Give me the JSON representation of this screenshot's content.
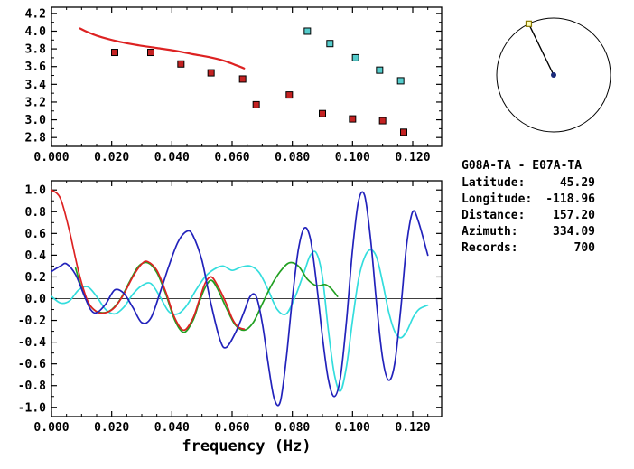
{
  "station_info": {
    "title": "G08A-TA - E07A-TA",
    "rows": [
      {
        "label": "Latitude:",
        "value": "45.29"
      },
      {
        "label": "Longitude:",
        "value": "-118.96"
      },
      {
        "label": "Distance:",
        "value": "157.20"
      },
      {
        "label": "Azimuth:",
        "value": "334.09"
      },
      {
        "label": "Records:",
        "value": "700"
      }
    ]
  },
  "azimuth_dial": {
    "azimuth_deg": 334.09,
    "center_dot_color": "#1a2a7a",
    "marker_outline_color": "#887700",
    "marker_fill_color": "#ffffbb"
  },
  "chart_data": [
    {
      "name": "dispersion-curves",
      "type": "scatter",
      "title": "",
      "xlabel": "",
      "ylabel": "",
      "xlim": [
        0,
        0.1296
      ],
      "ylim": [
        2.7,
        4.27
      ],
      "xticks": [
        0,
        0.02,
        0.04,
        0.06,
        0.08,
        0.1,
        0.12
      ],
      "xtick_labels": [
        "0.000",
        "0.020",
        "0.040",
        "0.060",
        "0.080",
        "0.100",
        "0.120"
      ],
      "xminor": 0.005,
      "yticks": [
        2.8,
        3.0,
        3.2,
        3.4,
        3.6,
        3.8,
        4.0,
        4.2
      ],
      "ytick_labels": [
        "2.8",
        "3.0",
        "3.2",
        "3.4",
        "3.6",
        "3.8",
        "4.0",
        "4.2"
      ],
      "yminor": 0.1,
      "zero_line": false,
      "series": [
        {
          "name": "red-dispersion-curve",
          "style": "line",
          "color": "#dd2222",
          "width": 2.2,
          "points": [
            [
              0.0095,
              4.03
            ],
            [
              0.012,
              3.99
            ],
            [
              0.015,
              3.95
            ],
            [
              0.019,
              3.91
            ],
            [
              0.024,
              3.87
            ],
            [
              0.029,
              3.84
            ],
            [
              0.035,
              3.81
            ],
            [
              0.041,
              3.78
            ],
            [
              0.047,
              3.74
            ],
            [
              0.052,
              3.71
            ],
            [
              0.057,
              3.67
            ],
            [
              0.061,
              3.62
            ],
            [
              0.064,
              3.58
            ]
          ]
        },
        {
          "name": "red-square-picks",
          "style": "squares",
          "color": "#c42222",
          "points": [
            [
              0.021,
              3.76
            ],
            [
              0.033,
              3.76
            ],
            [
              0.043,
              3.63
            ],
            [
              0.053,
              3.53
            ],
            [
              0.0635,
              3.46
            ],
            [
              0.068,
              3.17
            ],
            [
              0.079,
              3.28
            ],
            [
              0.09,
              3.07
            ],
            [
              0.1,
              3.01
            ],
            [
              0.11,
              2.99
            ],
            [
              0.117,
              2.86
            ]
          ]
        },
        {
          "name": "cyan-square-picks",
          "style": "squares",
          "color": "#55cccc",
          "points": [
            [
              0.085,
              4.0
            ],
            [
              0.0925,
              3.86
            ],
            [
              0.101,
              3.7
            ],
            [
              0.109,
              3.56
            ],
            [
              0.116,
              3.44
            ]
          ]
        }
      ]
    },
    {
      "name": "waveforms",
      "type": "line",
      "title": "",
      "xlabel": "frequency (Hz)",
      "ylabel": "",
      "xlim": [
        0,
        0.1296
      ],
      "ylim": [
        -1.085,
        1.085
      ],
      "xticks": [
        0,
        0.02,
        0.04,
        0.06,
        0.08,
        0.1,
        0.12
      ],
      "xtick_labels": [
        "0.000",
        "0.020",
        "0.040",
        "0.060",
        "0.080",
        "0.100",
        "0.120"
      ],
      "xminor": 0.005,
      "yticks": [
        -1.0,
        -0.8,
        -0.6,
        -0.4,
        -0.2,
        0.0,
        0.2,
        0.4,
        0.6,
        0.8,
        1.0
      ],
      "ytick_labels": [
        "-1.0",
        "-0.8",
        "-0.6",
        "-0.4",
        "-0.2",
        "0.0",
        "0.2",
        "0.4",
        "0.6",
        "0.8",
        "1.0"
      ],
      "yminor": 0.1,
      "zero_line": true,
      "series": [
        {
          "name": "waveform-cyan",
          "style": "line",
          "color": "#33dddd",
          "width": 1.7,
          "points": [
            [
              0,
              0.02
            ],
            [
              0.003,
              -0.04
            ],
            [
              0.006,
              -0.02
            ],
            [
              0.009,
              0.08
            ],
            [
              0.012,
              0.11
            ],
            [
              0.015,
              0.02
            ],
            [
              0.018,
              -0.1
            ],
            [
              0.021,
              -0.14
            ],
            [
              0.024,
              -0.08
            ],
            [
              0.027,
              0.04
            ],
            [
              0.03,
              0.12
            ],
            [
              0.033,
              0.14
            ],
            [
              0.036,
              0.02
            ],
            [
              0.039,
              -0.12
            ],
            [
              0.042,
              -0.14
            ],
            [
              0.045,
              -0.06
            ],
            [
              0.048,
              0.08
            ],
            [
              0.051,
              0.2
            ],
            [
              0.054,
              0.27
            ],
            [
              0.057,
              0.3
            ],
            [
              0.06,
              0.26
            ],
            [
              0.063,
              0.29
            ],
            [
              0.066,
              0.3
            ],
            [
              0.069,
              0.24
            ],
            [
              0.072,
              0.08
            ],
            [
              0.075,
              -0.1
            ],
            [
              0.078,
              -0.14
            ],
            [
              0.081,
              0.02
            ],
            [
              0.084,
              0.25
            ],
            [
              0.086,
              0.4
            ],
            [
              0.088,
              0.42
            ],
            [
              0.09,
              0.2
            ],
            [
              0.092,
              -0.3
            ],
            [
              0.094,
              -0.7
            ],
            [
              0.096,
              -0.85
            ],
            [
              0.098,
              -0.62
            ],
            [
              0.1,
              -0.2
            ],
            [
              0.102,
              0.18
            ],
            [
              0.104,
              0.38
            ],
            [
              0.106,
              0.45
            ],
            [
              0.108,
              0.38
            ],
            [
              0.11,
              0.15
            ],
            [
              0.112,
              -0.12
            ],
            [
              0.114,
              -0.3
            ],
            [
              0.116,
              -0.36
            ],
            [
              0.118,
              -0.3
            ],
            [
              0.12,
              -0.18
            ],
            [
              0.122,
              -0.1
            ],
            [
              0.125,
              -0.06
            ]
          ]
        },
        {
          "name": "waveform-green",
          "style": "line",
          "color": "#22a022",
          "width": 1.7,
          "points": [
            [
              0.008,
              0.28
            ],
            [
              0.011,
              0.02
            ],
            [
              0.014,
              -0.1
            ],
            [
              0.017,
              -0.13
            ],
            [
              0.02,
              -0.1
            ],
            [
              0.023,
              0.0
            ],
            [
              0.026,
              0.16
            ],
            [
              0.029,
              0.3
            ],
            [
              0.032,
              0.33
            ],
            [
              0.035,
              0.24
            ],
            [
              0.038,
              0.04
            ],
            [
              0.041,
              -0.2
            ],
            [
              0.044,
              -0.31
            ],
            [
              0.047,
              -0.2
            ],
            [
              0.049,
              -0.04
            ],
            [
              0.051,
              0.1
            ],
            [
              0.053,
              0.17
            ],
            [
              0.055,
              0.1
            ],
            [
              0.058,
              -0.08
            ],
            [
              0.061,
              -0.24
            ],
            [
              0.064,
              -0.29
            ],
            [
              0.067,
              -0.22
            ],
            [
              0.07,
              -0.05
            ],
            [
              0.073,
              0.12
            ],
            [
              0.076,
              0.25
            ],
            [
              0.079,
              0.33
            ],
            [
              0.082,
              0.3
            ],
            [
              0.085,
              0.18
            ],
            [
              0.088,
              0.12
            ],
            [
              0.091,
              0.13
            ],
            [
              0.093,
              0.09
            ],
            [
              0.095,
              0.02
            ]
          ]
        },
        {
          "name": "waveform-red",
          "style": "line",
          "color": "#dd2222",
          "width": 1.7,
          "points": [
            [
              0,
              1.0
            ],
            [
              0.003,
              0.92
            ],
            [
              0.006,
              0.62
            ],
            [
              0.009,
              0.25
            ],
            [
              0.012,
              -0.02
            ],
            [
              0.015,
              -0.12
            ],
            [
              0.018,
              -0.13
            ],
            [
              0.021,
              -0.08
            ],
            [
              0.024,
              0.04
            ],
            [
              0.027,
              0.2
            ],
            [
              0.03,
              0.32
            ],
            [
              0.032,
              0.34
            ],
            [
              0.035,
              0.26
            ],
            [
              0.038,
              0.06
            ],
            [
              0.041,
              -0.18
            ],
            [
              0.044,
              -0.29
            ],
            [
              0.047,
              -0.18
            ],
            [
              0.049,
              -0.02
            ],
            [
              0.051,
              0.14
            ],
            [
              0.053,
              0.2
            ],
            [
              0.055,
              0.13
            ],
            [
              0.058,
              -0.04
            ],
            [
              0.06,
              -0.18
            ],
            [
              0.062,
              -0.26
            ],
            [
              0.064,
              -0.28
            ]
          ]
        },
        {
          "name": "waveform-blue",
          "style": "line",
          "color": "#2222bb",
          "width": 1.7,
          "points": [
            [
              0,
              0.25
            ],
            [
              0.003,
              0.3
            ],
            [
              0.005,
              0.32
            ],
            [
              0.008,
              0.22
            ],
            [
              0.011,
              0.02
            ],
            [
              0.013,
              -0.1
            ],
            [
              0.015,
              -0.13
            ],
            [
              0.018,
              -0.05
            ],
            [
              0.021,
              0.08
            ],
            [
              0.024,
              0.05
            ],
            [
              0.027,
              -0.08
            ],
            [
              0.03,
              -0.22
            ],
            [
              0.033,
              -0.18
            ],
            [
              0.036,
              0.05
            ],
            [
              0.039,
              0.3
            ],
            [
              0.042,
              0.52
            ],
            [
              0.045,
              0.62
            ],
            [
              0.047,
              0.58
            ],
            [
              0.05,
              0.35
            ],
            [
              0.053,
              -0.05
            ],
            [
              0.056,
              -0.38
            ],
            [
              0.058,
              -0.45
            ],
            [
              0.061,
              -0.32
            ],
            [
              0.064,
              -0.12
            ],
            [
              0.066,
              0.02
            ],
            [
              0.068,
              0.02
            ],
            [
              0.07,
              -0.22
            ],
            [
              0.072,
              -0.6
            ],
            [
              0.074,
              -0.92
            ],
            [
              0.076,
              -0.95
            ],
            [
              0.078,
              -0.55
            ],
            [
              0.08,
              0.0
            ],
            [
              0.082,
              0.45
            ],
            [
              0.084,
              0.65
            ],
            [
              0.086,
              0.55
            ],
            [
              0.088,
              0.15
            ],
            [
              0.09,
              -0.35
            ],
            [
              0.092,
              -0.75
            ],
            [
              0.094,
              -0.9
            ],
            [
              0.096,
              -0.72
            ],
            [
              0.098,
              -0.2
            ],
            [
              0.1,
              0.45
            ],
            [
              0.102,
              0.9
            ],
            [
              0.104,
              0.95
            ],
            [
              0.106,
              0.55
            ],
            [
              0.108,
              -0.05
            ],
            [
              0.11,
              -0.55
            ],
            [
              0.112,
              -0.75
            ],
            [
              0.114,
              -0.6
            ],
            [
              0.116,
              -0.1
            ],
            [
              0.118,
              0.5
            ],
            [
              0.12,
              0.8
            ],
            [
              0.122,
              0.7
            ],
            [
              0.125,
              0.4
            ]
          ]
        }
      ]
    }
  ]
}
